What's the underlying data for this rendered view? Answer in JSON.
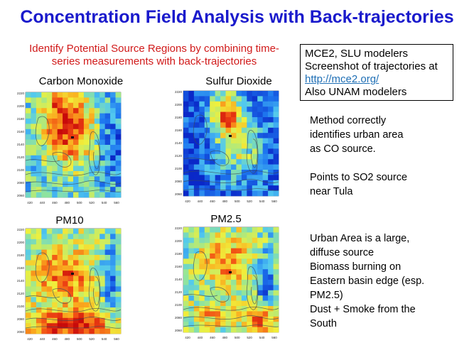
{
  "title": "Concentration Field Analysis with Back-trajectories",
  "subtitle": "Identify Potential Source Regions by combining time-series measurements with back-trajectories",
  "infobox": {
    "line1": "MCE2, SLU modelers",
    "line2": "Screenshot of trajectories at",
    "link": "http://mce2.org/",
    "line4": "Also UNAM modelers"
  },
  "notes": {
    "note1": [
      "Method correctly",
      "identifies urban area",
      "as CO source."
    ],
    "note2": [
      "Points to SO2 source",
      "near Tula"
    ],
    "note3": [
      "Urban Area is a large,",
      "diffuse source",
      "Biomass burning on",
      "Eastern basin edge (esp.",
      "PM2.5)",
      "Dust + Smoke from the",
      "South"
    ]
  },
  "maps": [
    {
      "label": "Carbon Monoxide",
      "scheme": "co"
    },
    {
      "label": "Sulfur Dioxide",
      "scheme": "so2"
    },
    {
      "label": "PM10",
      "scheme": "pm10"
    },
    {
      "label": "PM2.5",
      "scheme": "pm25"
    }
  ],
  "axis": {
    "x_ticks": [
      "420",
      "440",
      "460",
      "480",
      "500",
      "520",
      "540",
      "560"
    ],
    "y_ticks": [
      "2220",
      "2200",
      "2180",
      "2160",
      "2140",
      "2120",
      "2100",
      "2080",
      "2060"
    ]
  }
}
